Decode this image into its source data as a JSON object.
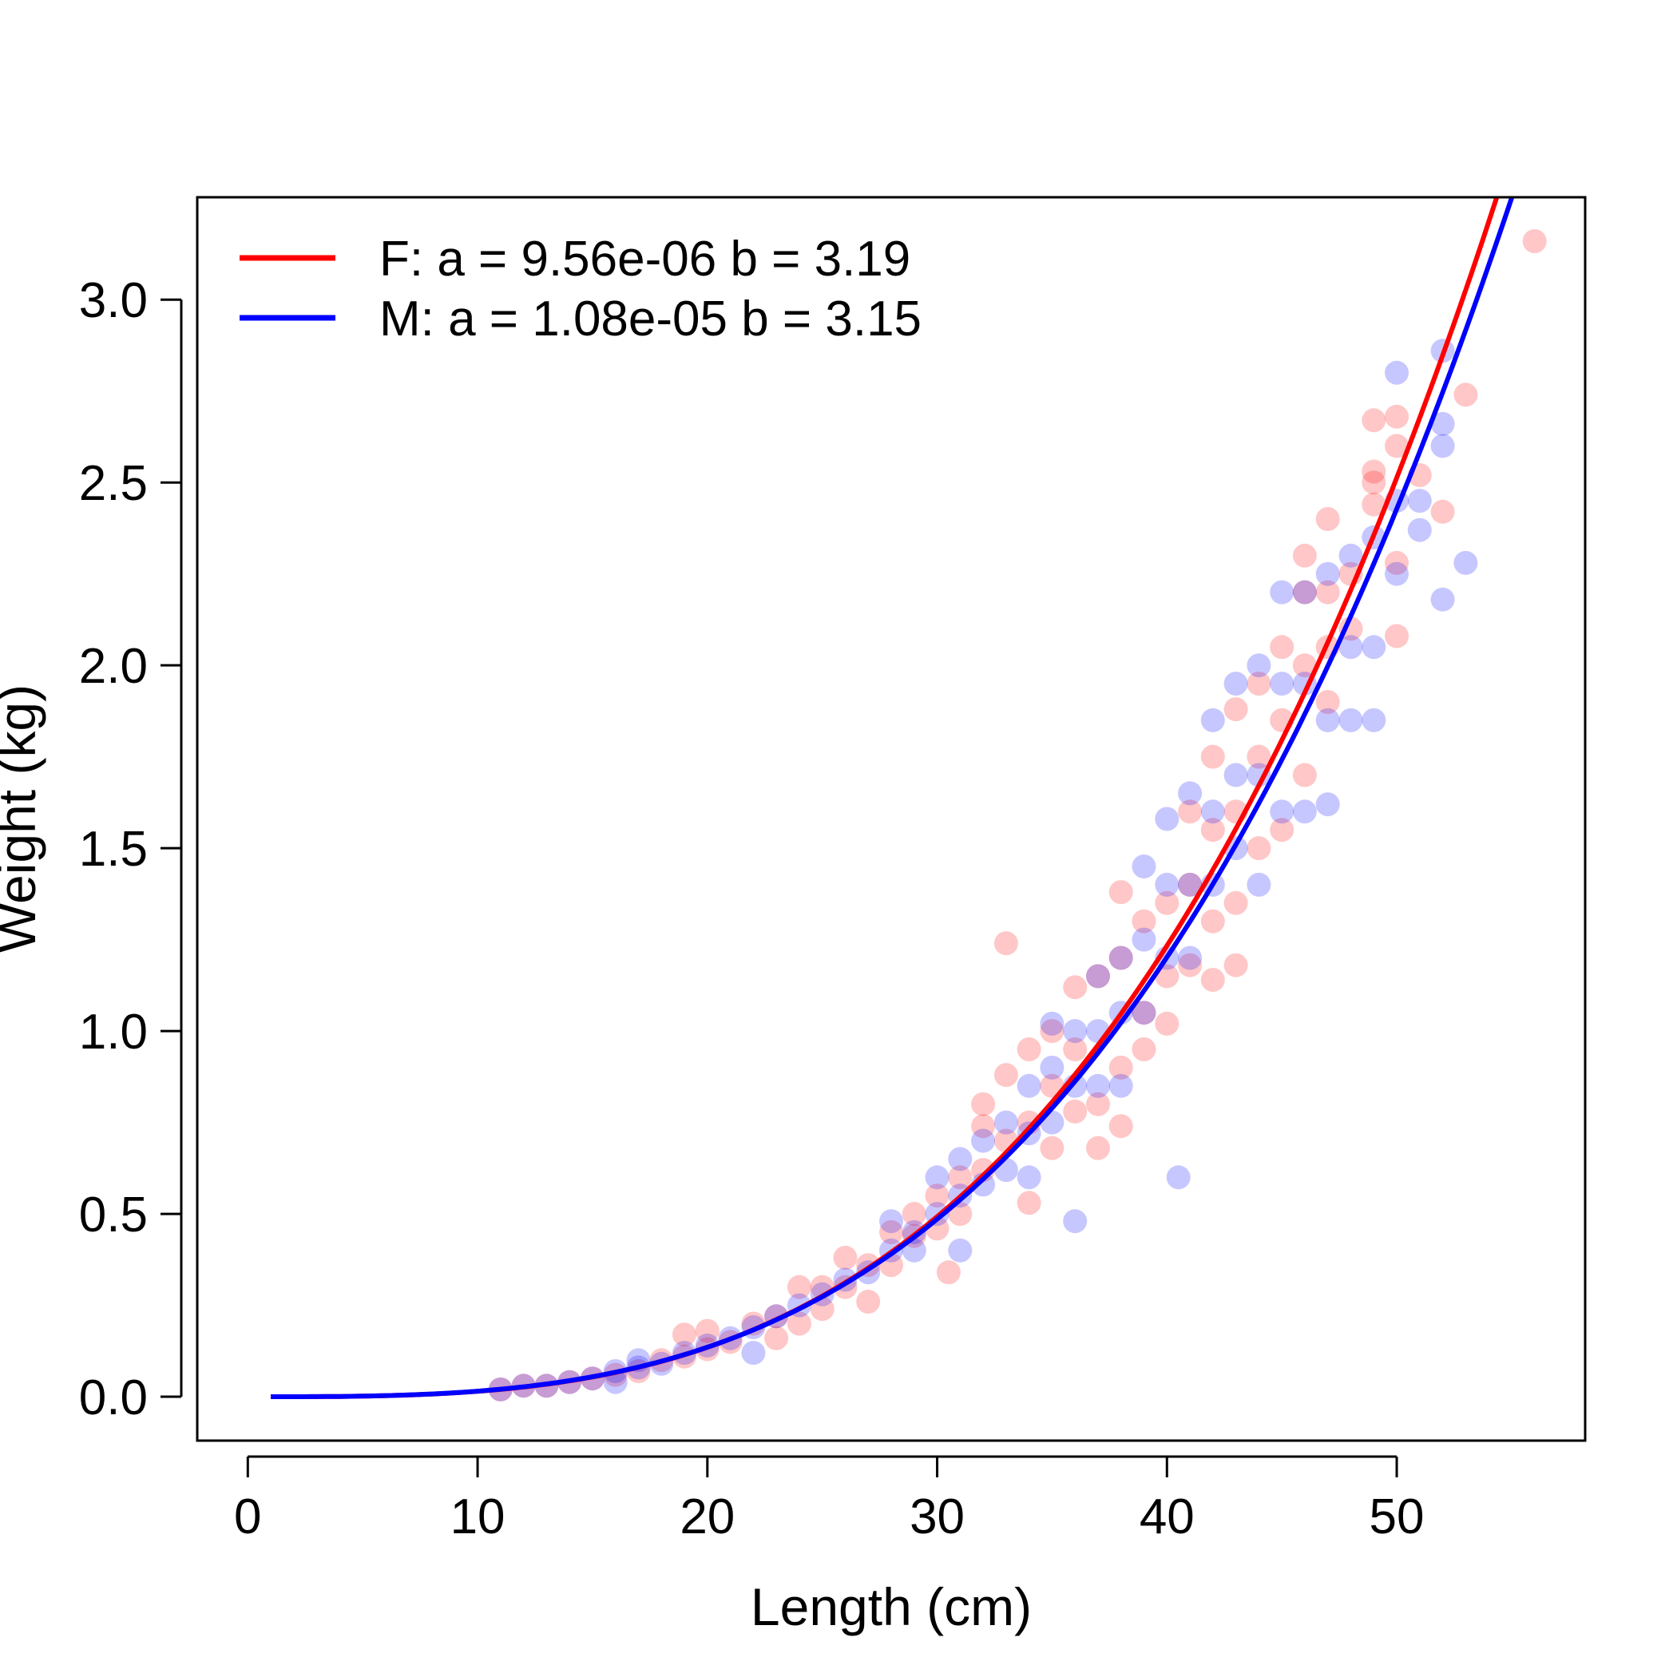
{
  "chart_data": {
    "type": "scatter",
    "title": "",
    "xlabel": "Length (cm)",
    "ylabel": "Weight (kg)",
    "xlim": [
      -2.2,
      58.2
    ],
    "ylim": [
      -0.12,
      3.28
    ],
    "xticks": [
      0,
      10,
      20,
      30,
      40,
      50
    ],
    "xtick_labels": [
      "0",
      "10",
      "20",
      "30",
      "40",
      "50"
    ],
    "yticks": [
      0.0,
      0.5,
      1.0,
      1.5,
      2.0,
      2.5,
      3.0
    ],
    "ytick_labels": [
      "0.0",
      "0.5",
      "1.0",
      "1.5",
      "2.0",
      "2.5",
      "3.0"
    ],
    "grid": false,
    "legend_position": "top-left",
    "series": [
      {
        "name": "F",
        "label": "F: a = 9.56e-06 b = 3.19",
        "color": "#ff0000",
        "a": 9.56e-06,
        "b": 3.19,
        "curve_x_range": [
          1,
          56
        ],
        "points": [
          [
            11,
            0.02
          ],
          [
            12,
            0.03
          ],
          [
            13,
            0.03
          ],
          [
            14,
            0.04
          ],
          [
            15,
            0.05
          ],
          [
            16,
            0.06
          ],
          [
            17,
            0.07
          ],
          [
            18,
            0.1
          ],
          [
            19,
            0.11
          ],
          [
            19,
            0.17
          ],
          [
            20,
            0.13
          ],
          [
            20,
            0.18
          ],
          [
            21,
            0.15
          ],
          [
            22,
            0.2
          ],
          [
            23,
            0.22
          ],
          [
            23,
            0.16
          ],
          [
            24,
            0.3
          ],
          [
            24,
            0.2
          ],
          [
            25,
            0.3
          ],
          [
            25,
            0.24
          ],
          [
            26,
            0.38
          ],
          [
            26,
            0.3
          ],
          [
            27,
            0.36
          ],
          [
            27,
            0.26
          ],
          [
            28,
            0.45
          ],
          [
            28,
            0.36
          ],
          [
            29,
            0.44
          ],
          [
            29,
            0.5
          ],
          [
            30,
            0.55
          ],
          [
            30,
            0.46
          ],
          [
            30.5,
            0.34
          ],
          [
            31,
            0.6
          ],
          [
            31,
            0.5
          ],
          [
            32,
            0.8
          ],
          [
            32,
            0.74
          ],
          [
            32,
            0.62
          ],
          [
            33,
            0.88
          ],
          [
            33,
            1.24
          ],
          [
            33,
            0.7
          ],
          [
            34,
            0.95
          ],
          [
            34,
            0.75
          ],
          [
            34,
            0.53
          ],
          [
            35,
            1.0
          ],
          [
            35,
            0.85
          ],
          [
            35,
            0.68
          ],
          [
            36,
            1.12
          ],
          [
            36,
            0.95
          ],
          [
            36,
            0.78
          ],
          [
            37,
            1.15
          ],
          [
            37,
            0.8
          ],
          [
            37,
            0.68
          ],
          [
            38,
            1.38
          ],
          [
            38,
            1.2
          ],
          [
            38,
            0.9
          ],
          [
            38,
            0.74
          ],
          [
            39,
            1.3
          ],
          [
            39,
            1.05
          ],
          [
            39,
            0.95
          ],
          [
            40,
            1.35
          ],
          [
            40,
            1.15
          ],
          [
            40,
            1.02
          ],
          [
            41,
            1.6
          ],
          [
            41,
            1.4
          ],
          [
            41,
            1.18
          ],
          [
            42,
            1.75
          ],
          [
            42,
            1.55
          ],
          [
            42,
            1.3
          ],
          [
            42,
            1.14
          ],
          [
            43,
            1.88
          ],
          [
            43,
            1.6
          ],
          [
            43,
            1.35
          ],
          [
            43,
            1.18
          ],
          [
            44,
            1.95
          ],
          [
            44,
            1.75
          ],
          [
            44,
            1.5
          ],
          [
            45,
            2.05
          ],
          [
            45,
            1.85
          ],
          [
            45,
            1.55
          ],
          [
            46,
            2.2
          ],
          [
            46,
            2.3
          ],
          [
            46,
            2.0
          ],
          [
            46,
            1.7
          ],
          [
            47,
            2.4
          ],
          [
            47,
            2.2
          ],
          [
            47,
            2.05
          ],
          [
            47,
            1.9
          ],
          [
            48,
            2.25
          ],
          [
            48,
            2.1
          ],
          [
            49,
            2.67
          ],
          [
            49,
            2.53
          ],
          [
            49,
            2.5
          ],
          [
            49,
            2.44
          ],
          [
            50,
            2.68
          ],
          [
            50,
            2.6
          ],
          [
            50,
            2.28
          ],
          [
            50,
            2.08
          ],
          [
            51,
            2.52
          ],
          [
            52,
            2.42
          ],
          [
            53,
            2.74
          ],
          [
            56,
            3.16
          ]
        ]
      },
      {
        "name": "M",
        "label": "M: a = 1.08e-05 b = 3.15",
        "color": "#0000ff",
        "a": 1.08e-05,
        "b": 3.15,
        "curve_x_range": [
          1,
          56
        ],
        "points": [
          [
            11,
            0.02
          ],
          [
            12,
            0.03
          ],
          [
            13,
            0.03
          ],
          [
            14,
            0.04
          ],
          [
            15,
            0.05
          ],
          [
            16,
            0.04
          ],
          [
            16,
            0.07
          ],
          [
            17,
            0.08
          ],
          [
            17,
            0.1
          ],
          [
            18,
            0.09
          ],
          [
            19,
            0.12
          ],
          [
            20,
            0.14
          ],
          [
            21,
            0.16
          ],
          [
            22,
            0.12
          ],
          [
            22,
            0.19
          ],
          [
            23,
            0.22
          ],
          [
            24,
            0.25
          ],
          [
            25,
            0.28
          ],
          [
            26,
            0.32
          ],
          [
            27,
            0.34
          ],
          [
            28,
            0.4
          ],
          [
            28,
            0.48
          ],
          [
            29,
            0.45
          ],
          [
            29,
            0.4
          ],
          [
            30,
            0.6
          ],
          [
            30,
            0.5
          ],
          [
            31,
            0.65
          ],
          [
            31,
            0.55
          ],
          [
            31,
            0.4
          ],
          [
            32,
            0.7
          ],
          [
            32,
            0.58
          ],
          [
            33,
            0.75
          ],
          [
            33,
            0.62
          ],
          [
            34,
            0.85
          ],
          [
            34,
            0.72
          ],
          [
            34,
            0.6
          ],
          [
            35,
            1.02
          ],
          [
            35,
            0.9
          ],
          [
            35,
            0.75
          ],
          [
            36,
            1.0
          ],
          [
            36,
            0.85
          ],
          [
            36,
            0.48
          ],
          [
            37,
            1.15
          ],
          [
            37,
            1.0
          ],
          [
            37,
            0.85
          ],
          [
            38,
            1.2
          ],
          [
            38,
            1.05
          ],
          [
            38,
            0.85
          ],
          [
            39,
            1.45
          ],
          [
            39,
            1.25
          ],
          [
            39,
            1.05
          ],
          [
            40,
            1.58
          ],
          [
            40,
            1.4
          ],
          [
            40,
            1.2
          ],
          [
            40.5,
            0.6
          ],
          [
            41,
            1.65
          ],
          [
            41,
            1.4
          ],
          [
            41,
            1.2
          ],
          [
            42,
            1.85
          ],
          [
            42,
            1.6
          ],
          [
            42,
            1.4
          ],
          [
            43,
            1.95
          ],
          [
            43,
            1.7
          ],
          [
            43,
            1.5
          ],
          [
            44,
            2.0
          ],
          [
            44,
            1.7
          ],
          [
            44,
            1.4
          ],
          [
            45,
            2.2
          ],
          [
            45,
            1.95
          ],
          [
            45,
            1.6
          ],
          [
            46,
            2.2
          ],
          [
            46,
            1.95
          ],
          [
            46,
            1.6
          ],
          [
            47,
            2.25
          ],
          [
            47,
            1.85
          ],
          [
            47,
            1.62
          ],
          [
            48,
            2.3
          ],
          [
            48,
            2.05
          ],
          [
            48,
            1.85
          ],
          [
            49,
            2.35
          ],
          [
            49,
            2.05
          ],
          [
            49,
            1.85
          ],
          [
            50,
            2.8
          ],
          [
            50,
            2.45
          ],
          [
            50,
            2.25
          ],
          [
            51,
            2.45
          ],
          [
            51,
            2.37
          ],
          [
            52,
            2.86
          ],
          [
            52,
            2.6
          ],
          [
            52,
            2.66
          ],
          [
            52,
            2.18
          ],
          [
            53,
            2.28
          ]
        ]
      }
    ]
  }
}
